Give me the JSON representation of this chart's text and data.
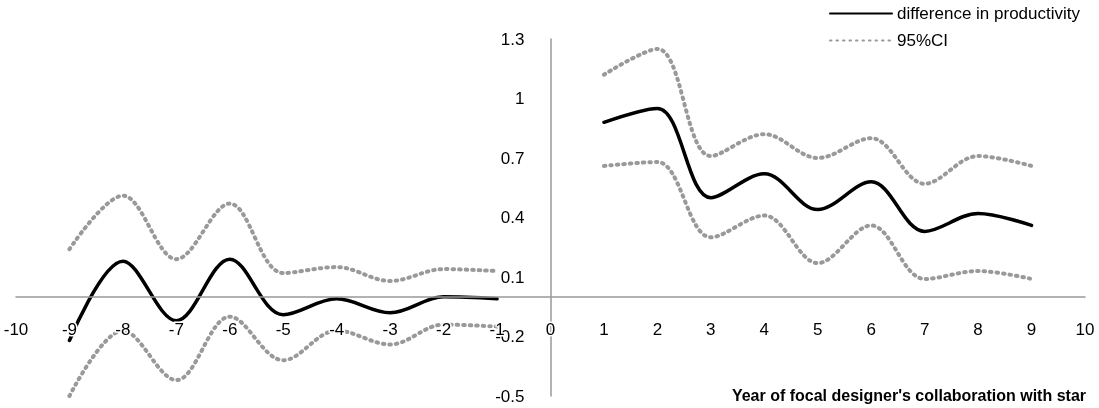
{
  "chart_data": {
    "type": "line",
    "xlabel": "Year of focal designer's collaboration with star",
    "x": [
      -9,
      -8,
      -7,
      -6,
      -5,
      -4,
      -3,
      -2,
      -1,
      0,
      1,
      2,
      3,
      4,
      5,
      6,
      7,
      8,
      9
    ],
    "series": [
      {
        "name": "difference in productivity",
        "color": "#000000",
        "line_style": "solid",
        "values": [
          -0.22,
          0.18,
          -0.12,
          0.19,
          -0.09,
          -0.01,
          -0.08,
          0.0,
          -0.01,
          null,
          0.88,
          0.95,
          0.5,
          0.62,
          0.44,
          0.58,
          0.33,
          0.42,
          0.36
        ]
      },
      {
        "name": "95%CI",
        "color": "#999999",
        "line_style": "dotted",
        "values": [
          0.24,
          0.51,
          0.19,
          0.47,
          0.12,
          0.15,
          0.08,
          0.14,
          0.13,
          null,
          1.12,
          1.25,
          0.71,
          0.82,
          0.7,
          0.8,
          0.57,
          0.71,
          0.66
        ]
      },
      {
        "color": "#999999",
        "line_style": "dotted",
        "values": [
          -0.5,
          -0.17,
          -0.42,
          -0.1,
          -0.32,
          -0.17,
          -0.24,
          -0.14,
          -0.15,
          null,
          0.66,
          0.68,
          0.3,
          0.41,
          0.17,
          0.36,
          0.09,
          0.13,
          0.09
        ]
      }
    ],
    "xlim": [
      -10,
      10
    ],
    "xticks": [
      -10,
      -9,
      -8,
      -7,
      -6,
      -5,
      -4,
      -3,
      -2,
      -1,
      0,
      1,
      2,
      3,
      4,
      5,
      6,
      7,
      8,
      9,
      10
    ],
    "ylim": [
      -0.5,
      1.3
    ],
    "yticks": [
      -0.5,
      -0.2,
      0.1,
      0.4,
      0.7,
      1,
      1.3
    ],
    "grid": false,
    "legend": "top right",
    "marker": "none"
  }
}
